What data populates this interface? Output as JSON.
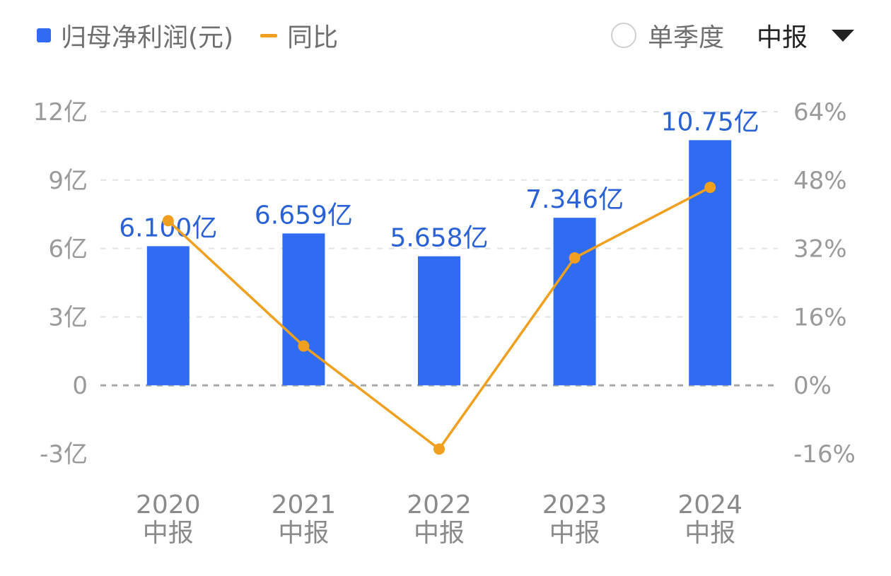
{
  "legend": {
    "bar_label": "归母净利润(元)",
    "line_label": "同比"
  },
  "controls": {
    "quarter_toggle_label": "单季度",
    "period_select_value": "中报"
  },
  "colors": {
    "bar": "#2f6bf3",
    "line": "#f0a01e",
    "data_label": "#2a62d6",
    "grid": "#e3e3e3",
    "zero_line": "#a8a8a8"
  },
  "chart_data": {
    "type": "bar",
    "categories": [
      "2020\n中报",
      "2021\n中报",
      "2022\n中报",
      "2023\n中报",
      "2024\n中报"
    ],
    "series": [
      {
        "name": "归母净利润(元)",
        "type": "bar",
        "axis": "left",
        "values": [
          6.1,
          6.659,
          5.658,
          7.346,
          10.75
        ],
        "labels": [
          "6.100亿",
          "6.659亿",
          "5.658亿",
          "7.346亿",
          "10.75亿"
        ]
      },
      {
        "name": "同比",
        "type": "line",
        "axis": "right",
        "values": [
          38.5,
          9.2,
          -14.9,
          29.8,
          46.3
        ]
      }
    ],
    "y_left": {
      "range": [
        -3,
        12
      ],
      "ticks": [
        -3,
        0,
        3,
        6,
        9,
        12
      ],
      "tick_labels": [
        "-3亿",
        "0",
        "3亿",
        "6亿",
        "9亿",
        "12亿"
      ]
    },
    "y_right": {
      "range": [
        -16,
        64
      ],
      "ticks": [
        -16,
        0,
        16,
        32,
        48,
        64
      ],
      "tick_labels": [
        "-16%",
        "0%",
        "16%",
        "32%",
        "48%",
        "64%"
      ]
    },
    "grid": true
  }
}
